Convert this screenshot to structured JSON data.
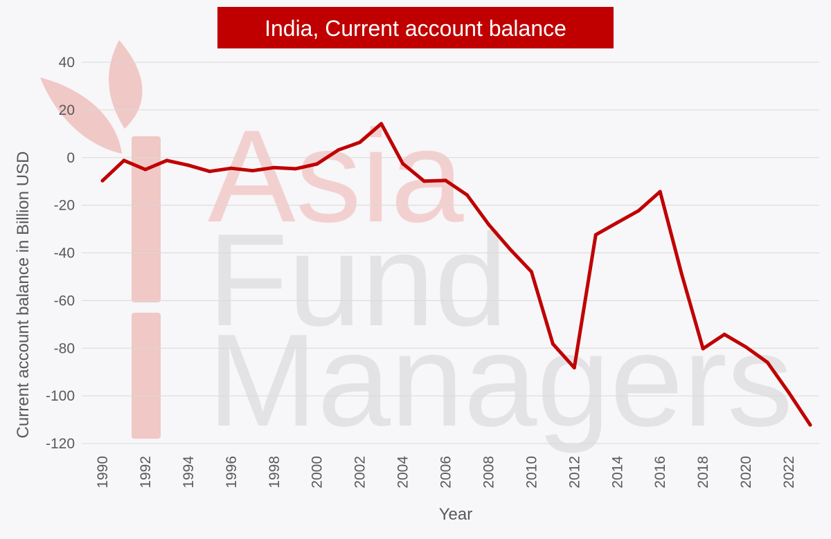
{
  "chart_data": {
    "type": "line",
    "title": "India, Current account balance",
    "xlabel": "Year",
    "ylabel": "Current account balance in Billion USD",
    "xlim": [
      1990,
      2023
    ],
    "ylim": [
      -120,
      40
    ],
    "yticks": [
      40,
      20,
      0,
      -20,
      -40,
      -60,
      -80,
      -100,
      -120
    ],
    "xticks": [
      1990,
      1992,
      1994,
      1996,
      1998,
      2000,
      2002,
      2004,
      2006,
      2008,
      2010,
      2012,
      2014,
      2016,
      2018,
      2020,
      2022
    ],
    "grid": true,
    "line_color": "#c00000",
    "series": [
      {
        "x": [
          1990,
          1991,
          1992,
          1993,
          1994,
          1995,
          1996,
          1997,
          1998,
          1999,
          2000,
          2001,
          2002,
          2003,
          2004,
          2005,
          2006,
          2007,
          2008,
          2009,
          2010,
          2011,
          2012,
          2013,
          2014,
          2015,
          2016,
          2017,
          2018,
          2019,
          2020,
          2021,
          2022,
          2023
        ],
        "values": [
          -9.7,
          -1.2,
          -5.0,
          -1.2,
          -3.2,
          -5.8,
          -4.5,
          -5.5,
          -4.2,
          -4.7,
          -2.7,
          3.2,
          6.4,
          14.2,
          -2.5,
          -9.9,
          -9.6,
          -15.7,
          -28.0,
          -38.4,
          -47.9,
          -78.2,
          -88.2,
          -32.4,
          -27.3,
          -22.3,
          -14.3,
          -48.7,
          -80.2,
          -74.2,
          -79.5,
          -85.9,
          -98.6,
          -112.2
        ]
      }
    ]
  },
  "watermark": {
    "line1": "Asia",
    "line2": "Fund",
    "line3": "Managers",
    "color_line1": "#f3d0d0",
    "color_rest": "#e3e3e5",
    "logo_color": "#f0c8c6"
  }
}
